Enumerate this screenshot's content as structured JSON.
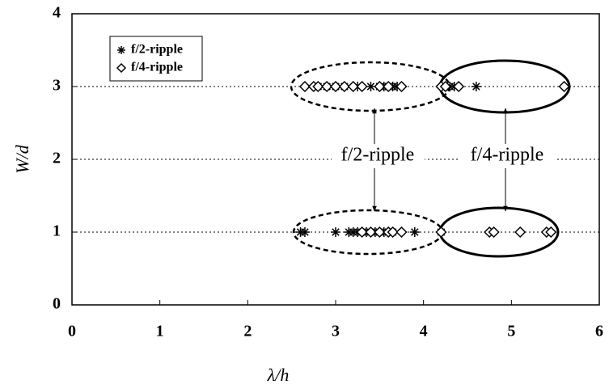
{
  "chart_data": {
    "type": "scatter",
    "xlabel": "λ/h",
    "ylabel": "W/d",
    "xlim": [
      0,
      6
    ],
    "ylim": [
      0,
      4
    ],
    "xticks": [
      0,
      1,
      2,
      3,
      4,
      5,
      6
    ],
    "yticks": [
      0,
      1,
      2,
      3,
      4
    ],
    "grid": true,
    "legend": "upper left",
    "annotations": [
      "f/2-ripple",
      "f/4-ripple"
    ],
    "series": [
      {
        "name": "f/2-ripple",
        "color": "#000000",
        "marker": "asterisk",
        "x": [
          2.8,
          2.9,
          3.0,
          3.1,
          3.25,
          3.4,
          3.5,
          3.55,
          3.6,
          3.65,
          3.7,
          4.3,
          4.35,
          4.6,
          2.6,
          2.65,
          3.0,
          3.15,
          3.2,
          3.25,
          3.3,
          3.35,
          3.4,
          3.45,
          3.5,
          3.55,
          3.6,
          3.65,
          3.9,
          4.2
        ],
        "values": [
          3,
          3,
          3,
          3,
          3,
          3,
          3,
          3,
          3,
          3,
          3,
          3,
          3,
          3,
          1,
          1,
          1,
          1,
          1,
          1,
          1,
          1,
          1,
          1,
          1,
          1,
          1,
          1,
          1,
          1
        ]
      },
      {
        "name": "f/4-ripple",
        "color": "#000000",
        "marker": "diamond",
        "x": [
          2.65,
          2.75,
          2.8,
          2.9,
          3.0,
          3.1,
          3.2,
          3.3,
          3.5,
          3.6,
          3.75,
          4.2,
          4.25,
          4.4,
          5.6,
          3.3,
          3.4,
          3.5,
          3.6,
          3.65,
          3.75,
          4.2,
          4.75,
          4.8,
          5.1,
          5.4,
          5.45
        ],
        "values": [
          3,
          3,
          3,
          3,
          3,
          3,
          3,
          3,
          3,
          3,
          3,
          3,
          3,
          3,
          3,
          1,
          1,
          1,
          1,
          1,
          1,
          1,
          1,
          1,
          1,
          1,
          1
        ]
      }
    ]
  }
}
